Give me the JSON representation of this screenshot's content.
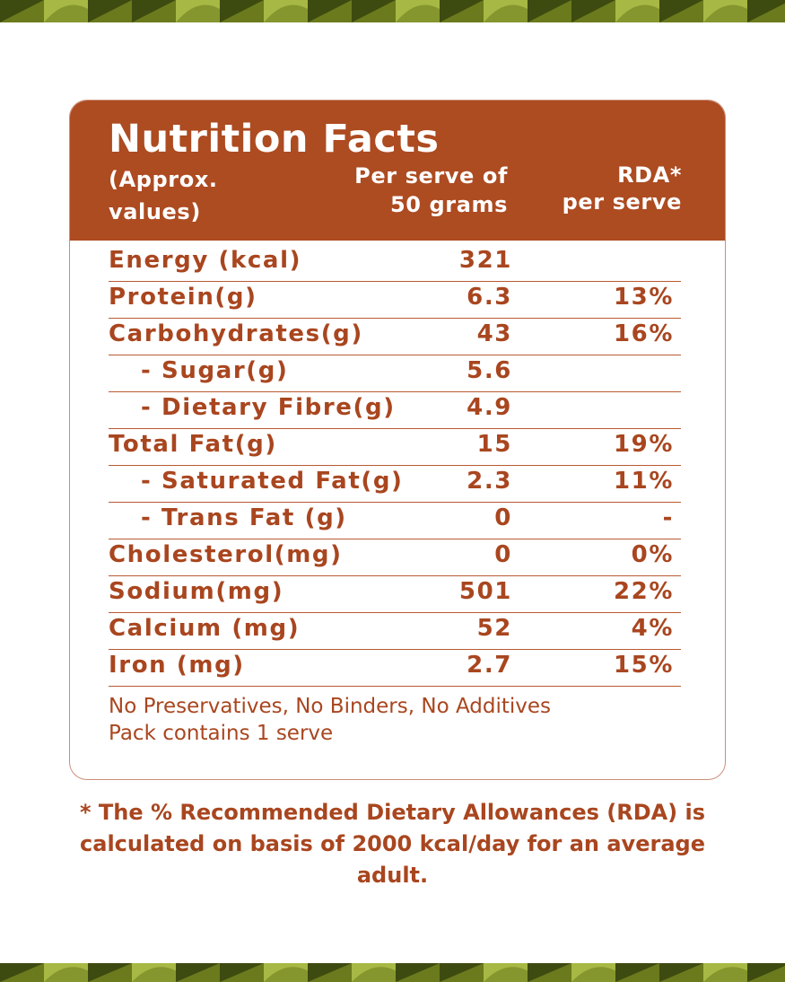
{
  "header": {
    "title": "Nutrition Facts",
    "col1_line1": "(Approx.",
    "col1_line2": "values)",
    "col2_line1": "Per serve of",
    "col2_line2": "50 grams",
    "col3_line1": "RDA*",
    "col3_line2": "per serve"
  },
  "rows": [
    {
      "name": "Energy (kcal)",
      "value": "321",
      "rda": ""
    },
    {
      "name": "Protein(g)",
      "value": "6.3",
      "rda": "13%"
    },
    {
      "name": "Carbohydrates(g)",
      "value": "43",
      "rda": "16%"
    },
    {
      "name": "- Sugar(g)",
      "value": "5.6",
      "rda": ""
    },
    {
      "name": "- Dietary Fibre(g)",
      "value": "4.9",
      "rda": ""
    },
    {
      "name": "Total Fat(g)",
      "value": "15",
      "rda": "19%"
    },
    {
      "name": "- Saturated Fat(g)",
      "value": "2.3",
      "rda": "11%"
    },
    {
      "name": "- Trans Fat (g)",
      "value": "0",
      "rda": "-"
    },
    {
      "name": "Cholesterol(mg)",
      "value": "0",
      "rda": "0%"
    },
    {
      "name": "Sodium(mg)",
      "value": "501",
      "rda": "22%"
    },
    {
      "name": "Calcium (mg)",
      "value": "52",
      "rda": "4%"
    },
    {
      "name": "Iron (mg)",
      "value": "2.7",
      "rda": "15%"
    }
  ],
  "notes": {
    "line1": "No Preservatives, No Binders, No Additives",
    "line2": "Pack contains 1 serve"
  },
  "footnote": {
    "line1": "* The % Recommended Dietary Allowances (RDA) is",
    "line2": "calculated on basis of 2000 kcal/day for an average",
    "line3": "adult."
  },
  "colors": {
    "header_bg": "#ad4b21",
    "text_brown": "#a9461f",
    "band_dark": "#3d4a10",
    "band_olive": "#6b7a1c",
    "band_light": "#a7b845"
  }
}
